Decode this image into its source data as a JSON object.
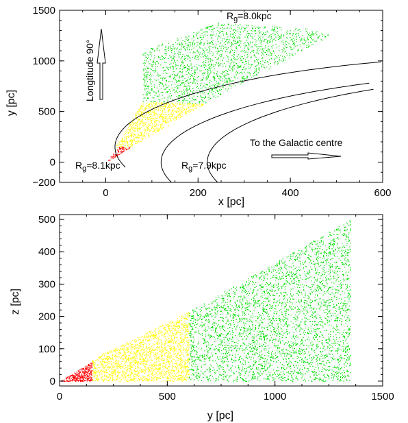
{
  "chart_data": [
    {
      "type": "scatter",
      "title": "",
      "xlabel": "x [pc]",
      "ylabel": "y [pc]",
      "xlim": [
        -100,
        600
      ],
      "ylim": [
        -200,
        1500
      ],
      "xticks": [
        "0",
        "200",
        "400",
        "600"
      ],
      "yticks": [
        "−200",
        "0",
        "500",
        "1000",
        "1500"
      ],
      "grid": false,
      "series": [
        {
          "color": "#ff0000",
          "shape": "triangle",
          "vertices": [
            [
              0,
              0
            ],
            [
              55,
              150
            ],
            [
              30,
              160
            ]
          ],
          "density": 0.06
        },
        {
          "color": "#ffff00",
          "shape": "polygon",
          "vertices": [
            [
              20,
              150
            ],
            [
              55,
              150
            ],
            [
              215,
              580
            ],
            [
              80,
              600
            ]
          ],
          "density": 0.04
        },
        {
          "color": "#00dd00",
          "shape": "polygon",
          "vertices": [
            [
              80,
              600
            ],
            [
              215,
              580
            ],
            [
              490,
              1260
            ],
            [
              440,
              1320
            ],
            [
              240,
              1380
            ],
            [
              80,
              1100
            ]
          ],
          "density": 0.02
        }
      ],
      "arcs": [
        {
          "name_html": "Rg=8.0kpc",
          "ref": [
            120,
            0
          ]
        },
        {
          "name_html": "Rg=8.1kpc",
          "ref": [
            20,
            150
          ]
        },
        {
          "name_html": "Rg=7.9kpc",
          "ref": [
            220,
            0
          ]
        }
      ],
      "annotations": {
        "longitude": "Longtitude 90°",
        "galactic_centre": "To the Galactic centre",
        "rg80": {
          "prefix": "R",
          "sub": "g",
          "rest": "=8.0kpc"
        },
        "rg81": {
          "prefix": "R",
          "sub": "g",
          "rest": "=8.1kpc"
        },
        "rg79": {
          "prefix": "R",
          "sub": "g",
          "rest": "=7.9kpc"
        }
      }
    },
    {
      "type": "scatter",
      "title": "",
      "xlabel": "y [pc]",
      "ylabel": "z [pc]",
      "xlim": [
        0,
        1500
      ],
      "ylim": [
        -15,
        515
      ],
      "xticks": [
        "0",
        "500",
        "1000",
        "1500"
      ],
      "yticks": [
        "0",
        "100",
        "200",
        "300",
        "400",
        "500"
      ],
      "grid": false,
      "series": [
        {
          "color": "#ff0000",
          "shape": "polygon",
          "vertices": [
            [
              0,
              0
            ],
            [
              150,
              0
            ],
            [
              150,
              60
            ]
          ],
          "density": 0.1
        },
        {
          "color": "#ffff00",
          "shape": "polygon",
          "vertices": [
            [
              150,
              0
            ],
            [
              600,
              0
            ],
            [
              600,
              215
            ],
            [
              150,
              70
            ]
          ],
          "density": 0.05
        },
        {
          "color": "#00dd00",
          "shape": "polygon",
          "vertices": [
            [
              600,
              0
            ],
            [
              1350,
              0
            ],
            [
              1350,
              500
            ],
            [
              600,
              215
            ]
          ],
          "density": 0.03
        }
      ]
    }
  ]
}
